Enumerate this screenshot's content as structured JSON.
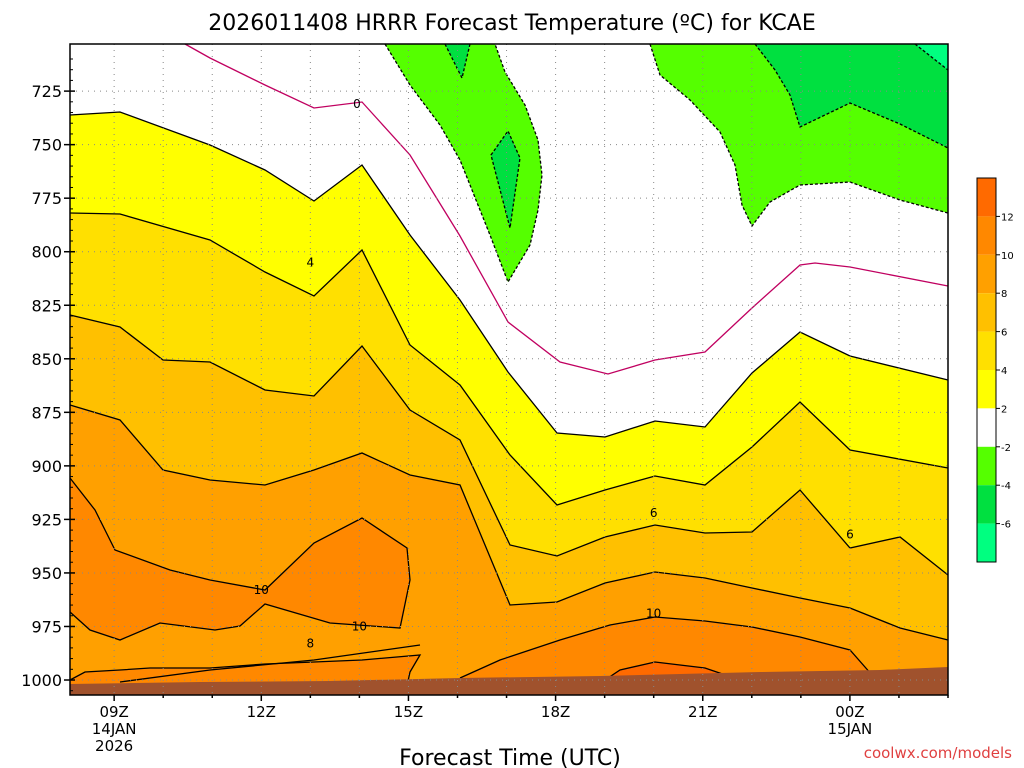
{
  "chart_data": {
    "type": "area",
    "title": "2026011408 HRRR Forecast Temperature (ºC) for KCAE",
    "xlabel": "Forecast Time (UTC)",
    "ylabel": "",
    "x_ticks": [
      {
        "hour": 9,
        "lines": [
          "09Z",
          "14JAN",
          "2026"
        ]
      },
      {
        "hour": 12,
        "lines": [
          "12Z"
        ]
      },
      {
        "hour": 15,
        "lines": [
          "15Z"
        ]
      },
      {
        "hour": 18,
        "lines": [
          "18Z"
        ]
      },
      {
        "hour": 21,
        "lines": [
          "21Z"
        ]
      },
      {
        "hour": 24,
        "lines": [
          "00Z",
          "15JAN"
        ]
      }
    ],
    "xlim": [
      8.1,
      26
    ],
    "ylim": [
      703,
      1007
    ],
    "y_ticks": [
      725,
      750,
      775,
      800,
      825,
      850,
      875,
      900,
      925,
      950,
      975,
      1000
    ],
    "grid": true,
    "colors": {
      "lt_m6": "#00ff80",
      "m6_m4": "#00e040",
      "m4_m2": "#55ff00",
      "m2_2": "#ffffff",
      "2_4": "#ffff00",
      "4_6": "#ffe000",
      "6_8": "#ffc000",
      "8_10": "#ffa000",
      "10_12": "#ff8800",
      "gt_12": "#ff6a00",
      "zero_line": "#c00060",
      "ground": "#a0522d"
    },
    "colorbar": {
      "ticks": [
        12,
        10,
        8,
        6,
        4,
        2,
        -2,
        -4,
        -6
      ]
    },
    "contour_labels": [
      {
        "text": "0",
        "hour": 13.95,
        "p": 731
      },
      {
        "text": "4",
        "hour": 13.0,
        "p": 805
      },
      {
        "text": "6",
        "hour": 20.0,
        "p": 922
      },
      {
        "text": "6",
        "hour": 24.0,
        "p": 932
      },
      {
        "text": "10",
        "hour": 12.0,
        "p": 958
      },
      {
        "text": "10",
        "hour": 14.0,
        "p": 975
      },
      {
        "text": "10",
        "hour": 20.0,
        "p": 969
      },
      {
        "text": "8",
        "hour": 13.0,
        "p": 983
      }
    ],
    "credit": "coolwx.com/models"
  }
}
